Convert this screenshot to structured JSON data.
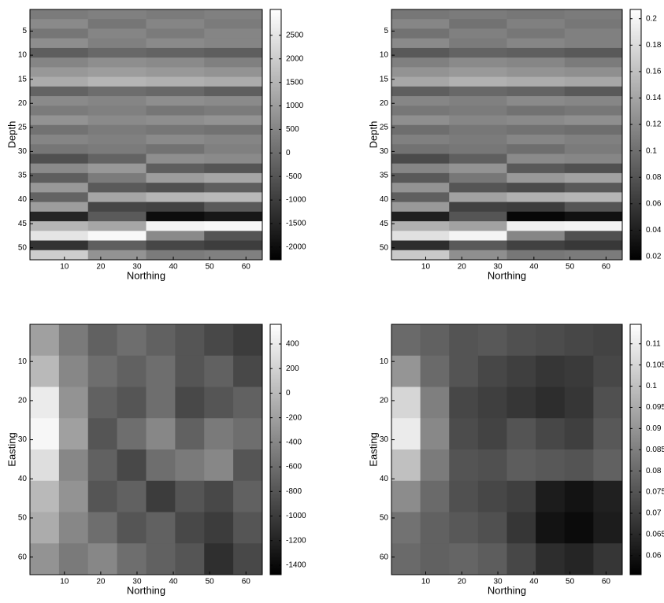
{
  "chart_data": [
    {
      "type": "heatmap",
      "x_label": "Northing",
      "y_label": "Depth",
      "xlim": [
        0.5,
        64.5
      ],
      "ylim": [
        0.5,
        52.5
      ],
      "xticks": [
        10,
        20,
        30,
        40,
        50,
        60
      ],
      "yticks": [
        5,
        10,
        15,
        20,
        25,
        30,
        35,
        40,
        45,
        50
      ],
      "clim": [
        -2270,
        3050
      ],
      "cticks": [
        -2000,
        -1500,
        -1000,
        -500,
        0,
        500,
        1000,
        1500,
        2000,
        2500
      ],
      "z": [
        [
          300,
          400,
          300,
          400
        ],
        [
          600,
          200,
          500,
          300
        ],
        [
          200,
          500,
          300,
          500
        ],
        [
          700,
          400,
          600,
          500
        ],
        [
          -300,
          -100,
          -200,
          -300
        ],
        [
          500,
          700,
          600,
          400
        ],
        [
          900,
          1000,
          900,
          800
        ],
        [
          1300,
          1500,
          1400,
          1300
        ],
        [
          -200,
          0,
          -100,
          -300
        ],
        [
          600,
          500,
          700,
          600
        ],
        [
          300,
          400,
          200,
          300
        ],
        [
          800,
          600,
          700,
          800
        ],
        [
          100,
          300,
          200,
          100
        ],
        [
          500,
          400,
          600,
          500
        ],
        [
          200,
          300,
          100,
          400
        ],
        [
          -600,
          -200,
          700,
          600
        ],
        [
          600,
          900,
          -300,
          -500
        ],
        [
          -300,
          300,
          1000,
          1200
        ],
        [
          900,
          -400,
          -600,
          -300
        ],
        [
          -200,
          1200,
          1500,
          1600
        ],
        [
          1000,
          -800,
          -900,
          -400
        ],
        [
          -1500,
          -400,
          -2000,
          -1800
        ],
        [
          1500,
          1200,
          2800,
          2900
        ],
        [
          2500,
          2900,
          600,
          -500
        ],
        [
          -1200,
          -300,
          -800,
          -1000
        ],
        [
          2000,
          800,
          300,
          400
        ]
      ]
    },
    {
      "type": "heatmap",
      "x_label": "Northing",
      "y_label": "Depth",
      "xlim": [
        0.5,
        64.5
      ],
      "ylim": [
        0.5,
        52.5
      ],
      "xticks": [
        10,
        20,
        30,
        40,
        50,
        60
      ],
      "yticks": [
        5,
        10,
        15,
        20,
        25,
        30,
        35,
        40,
        45,
        50
      ],
      "clim": [
        0.0176,
        0.207
      ],
      "cticks": [
        0.02,
        0.04,
        0.06,
        0.08,
        0.1,
        0.12,
        0.14,
        0.16,
        0.18,
        0.2
      ],
      "z": [
        [
          0.106,
          0.109,
          0.106,
          0.109
        ],
        [
          0.117,
          0.102,
          0.113,
          0.106
        ],
        [
          0.102,
          0.113,
          0.106,
          0.113
        ],
        [
          0.12,
          0.109,
          0.117,
          0.113
        ],
        [
          0.084,
          0.091,
          0.088,
          0.084
        ],
        [
          0.113,
          0.12,
          0.117,
          0.109
        ],
        [
          0.127,
          0.131,
          0.127,
          0.124
        ],
        [
          0.142,
          0.149,
          0.145,
          0.142
        ],
        [
          0.088,
          0.095,
          0.091,
          0.084
        ],
        [
          0.117,
          0.113,
          0.12,
          0.117
        ],
        [
          0.106,
          0.109,
          0.102,
          0.106
        ],
        [
          0.124,
          0.117,
          0.12,
          0.124
        ],
        [
          0.099,
          0.106,
          0.102,
          0.099
        ],
        [
          0.113,
          0.109,
          0.117,
          0.113
        ],
        [
          0.102,
          0.106,
          0.099,
          0.109
        ],
        [
          0.073,
          0.088,
          0.12,
          0.117
        ],
        [
          0.117,
          0.127,
          0.084,
          0.077
        ],
        [
          0.084,
          0.106,
          0.131,
          0.138
        ],
        [
          0.127,
          0.081,
          0.073,
          0.084
        ],
        [
          0.088,
          0.138,
          0.149,
          0.153
        ],
        [
          0.131,
          0.066,
          0.063,
          0.081
        ],
        [
          0.041,
          0.081,
          0.023,
          0.03
        ],
        [
          0.149,
          0.138,
          0.196,
          0.199
        ],
        [
          0.185,
          0.199,
          0.117,
          0.077
        ],
        [
          0.052,
          0.084,
          0.066,
          0.059
        ],
        [
          0.167,
          0.124,
          0.106,
          0.109
        ]
      ]
    },
    {
      "type": "heatmap",
      "x_label": "Northing",
      "y_label": "Easting",
      "xlim": [
        0.5,
        64.5
      ],
      "ylim": [
        0.5,
        64.5
      ],
      "xticks": [
        10,
        20,
        30,
        40,
        50,
        60
      ],
      "yticks": [
        10,
        20,
        30,
        40,
        50,
        60
      ],
      "clim": [
        -1477,
        560
      ],
      "cticks": [
        -1400,
        -1200,
        -1000,
        -800,
        -600,
        -400,
        -200,
        0,
        200,
        400
      ],
      "z": [
        [
          -200,
          -500,
          -700,
          -600,
          -700,
          -800,
          -900,
          -1000
        ],
        [
          0,
          -400,
          -600,
          -700,
          -600,
          -800,
          -700,
          -900
        ],
        [
          400,
          -300,
          -700,
          -800,
          -600,
          -900,
          -800,
          -700
        ],
        [
          500,
          -200,
          -800,
          -600,
          -400,
          -700,
          -500,
          -600
        ],
        [
          300,
          -400,
          -700,
          -900,
          -600,
          -500,
          -400,
          -800
        ],
        [
          0,
          -300,
          -800,
          -700,
          -1000,
          -800,
          -900,
          -700
        ],
        [
          -100,
          -400,
          -600,
          -800,
          -700,
          -900,
          -1000,
          -800
        ],
        [
          -300,
          -500,
          -400,
          -600,
          -700,
          -800,
          -1100,
          -900
        ]
      ]
    },
    {
      "type": "heatmap",
      "x_label": "Northing",
      "y_label": "Easting",
      "xlim": [
        0.5,
        64.5
      ],
      "ylim": [
        0.5,
        64.5
      ],
      "xticks": [
        10,
        20,
        30,
        40,
        50,
        60
      ],
      "yticks": [
        10,
        20,
        30,
        40,
        50,
        60
      ],
      "clim": [
        0.0555,
        0.1146
      ],
      "cticks": [
        0.06,
        0.065,
        0.07,
        0.075,
        0.08,
        0.085,
        0.09,
        0.095,
        0.1,
        0.105,
        0.11
      ],
      "z": [
        [
          0.08,
          0.078,
          0.075,
          0.076,
          0.074,
          0.073,
          0.072,
          0.071
        ],
        [
          0.09,
          0.08,
          0.075,
          0.072,
          0.07,
          0.068,
          0.069,
          0.072
        ],
        [
          0.105,
          0.085,
          0.072,
          0.07,
          0.068,
          0.066,
          0.068,
          0.074
        ],
        [
          0.11,
          0.087,
          0.073,
          0.071,
          0.075,
          0.072,
          0.07,
          0.076
        ],
        [
          0.1,
          0.084,
          0.075,
          0.074,
          0.077,
          0.076,
          0.075,
          0.078
        ],
        [
          0.088,
          0.08,
          0.074,
          0.072,
          0.07,
          0.062,
          0.06,
          0.063
        ],
        [
          0.082,
          0.078,
          0.076,
          0.074,
          0.068,
          0.06,
          0.058,
          0.062
        ],
        [
          0.08,
          0.078,
          0.079,
          0.077,
          0.072,
          0.066,
          0.064,
          0.068
        ]
      ]
    }
  ]
}
